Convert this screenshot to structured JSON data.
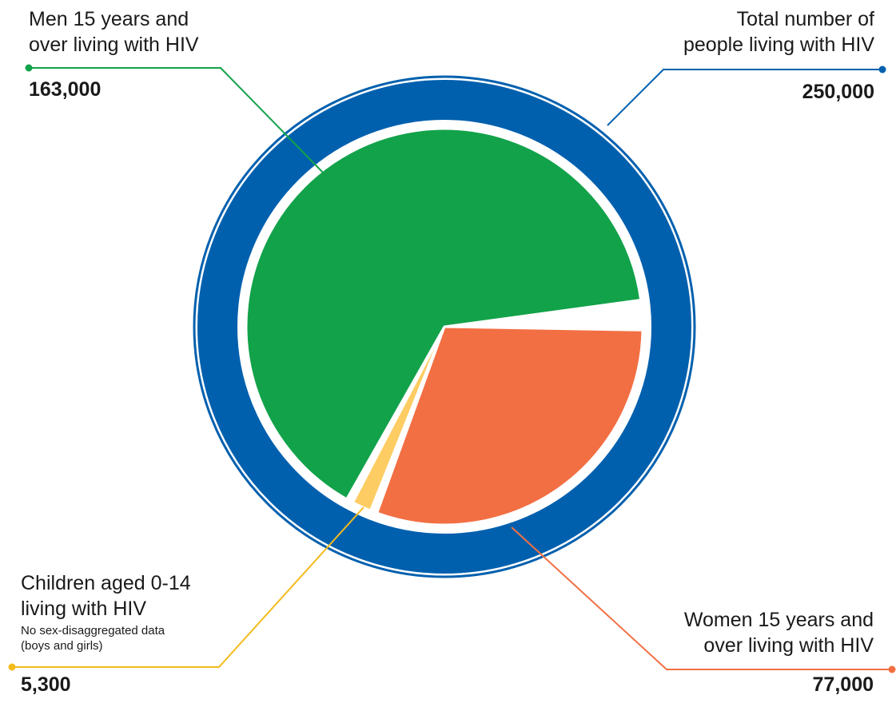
{
  "chart_data": {
    "type": "pie",
    "total": {
      "label_line1": "Total number of",
      "label_line2": "people living with HIV",
      "value": 250000,
      "value_label": "250,000",
      "color": "#0060ae"
    },
    "slices": [
      {
        "key": "men",
        "label_line1": "Men 15 years and",
        "label_line2": "over living with HIV",
        "value": 163000,
        "value_label": "163,000",
        "color": "#12a24a"
      },
      {
        "key": "women",
        "label_line1": "Women 15 years and",
        "label_line2": "over living with HIV",
        "value": 77000,
        "value_label": "77,000",
        "color": "#f26f43"
      },
      {
        "key": "children",
        "label_line1": "Children aged 0-14",
        "label_line2": "living with HIV",
        "note_line1": "No sex-disaggregated data",
        "note_line2": "(boys and girls)",
        "value": 5300,
        "value_label": "5,300",
        "color": "#fdcc63"
      }
    ]
  },
  "leader_colors": {
    "total": "#0060ae",
    "men": "#12a24a",
    "women": "#f26f43",
    "children": "#f3bb1c"
  }
}
